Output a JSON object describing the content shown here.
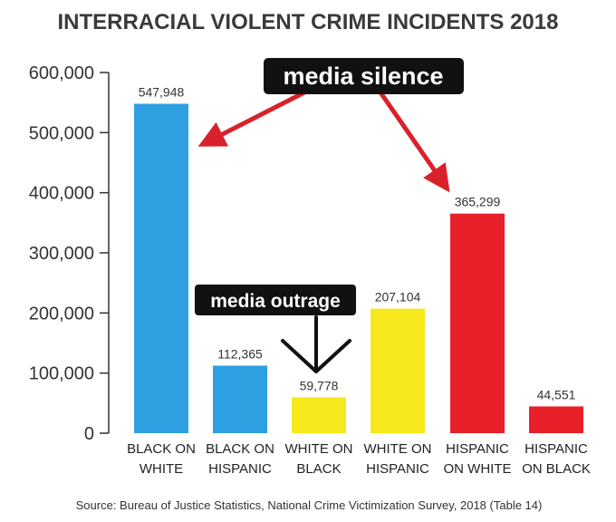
{
  "chart_data": {
    "type": "bar",
    "title": "INTERRACIAL VIOLENT CRIME INCIDENTS 2018",
    "categories": [
      [
        "BLACK ON",
        "WHITE"
      ],
      [
        "BLACK ON",
        "HISPANIC"
      ],
      [
        "WHITE ON",
        "BLACK"
      ],
      [
        "WHITE ON",
        "HISPANIC"
      ],
      [
        "HISPANIC",
        "ON WHITE"
      ],
      [
        "HISPANIC",
        "ON BLACK"
      ]
    ],
    "values": [
      547948,
      112365,
      59778,
      207104,
      365299,
      44551
    ],
    "value_labels": [
      "547,948",
      "112,365",
      "59,778",
      "207,104",
      "365,299",
      "44,551"
    ],
    "bar_colors": [
      "#2e9fe0",
      "#2e9fe0",
      "#f7e81e",
      "#f7e81e",
      "#e8202a",
      "#e8202a"
    ],
    "ylim": [
      0,
      600000
    ],
    "yticks": [
      0,
      100000,
      200000,
      300000,
      400000,
      500000,
      600000
    ],
    "ytick_labels": [
      "0",
      "100,000",
      "200,000",
      "300,000",
      "400,000",
      "500,000",
      "600,000"
    ],
    "grid": false,
    "source": "Source: Bureau of Justice Statistics, National Crime Victimization Survey, 2018 (Table 14)"
  },
  "annotations": {
    "silence_label": "media silence",
    "outrage_label": "media outrage"
  },
  "colors": {
    "arrow_red": "#d9212b",
    "callout_bg": "#111111"
  }
}
